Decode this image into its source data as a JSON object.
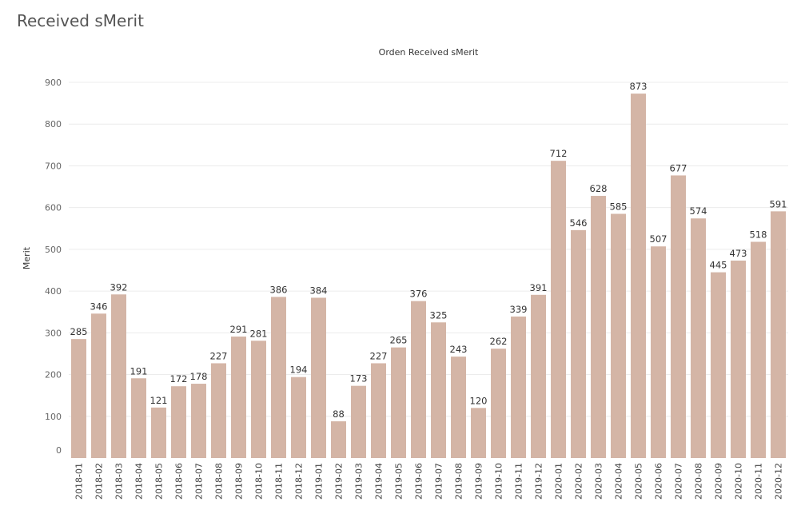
{
  "page": {
    "title": "Received sMerit"
  },
  "chart_data": {
    "type": "bar",
    "title": "Orden Received sMerit",
    "xlabel": "",
    "ylabel": "Merit",
    "ylim": [
      0,
      900
    ],
    "yticks": [
      0,
      100,
      200,
      300,
      400,
      500,
      600,
      700,
      800,
      900
    ],
    "grid": true,
    "bar_color": "#d4b5a6",
    "categories": [
      "2018-01",
      "2018-02",
      "2018-03",
      "2018-04",
      "2018-05",
      "2018-06",
      "2018-07",
      "2018-08",
      "2018-09",
      "2018-10",
      "2018-11",
      "2018-12",
      "2019-01",
      "2019-02",
      "2019-03",
      "2019-04",
      "2019-05",
      "2019-06",
      "2019-07",
      "2019-08",
      "2019-09",
      "2019-10",
      "2019-11",
      "2019-12",
      "2020-01",
      "2020-02",
      "2020-03",
      "2020-04",
      "2020-05",
      "2020-06",
      "2020-07",
      "2020-08",
      "2020-09",
      "2020-10",
      "2020-11",
      "2020-12"
    ],
    "values": [
      285,
      346,
      392,
      191,
      121,
      172,
      178,
      227,
      291,
      281,
      386,
      194,
      384,
      88,
      173,
      227,
      265,
      376,
      325,
      243,
      120,
      262,
      339,
      391,
      712,
      546,
      628,
      585,
      873,
      507,
      677,
      574,
      445,
      473,
      518,
      591
    ]
  }
}
